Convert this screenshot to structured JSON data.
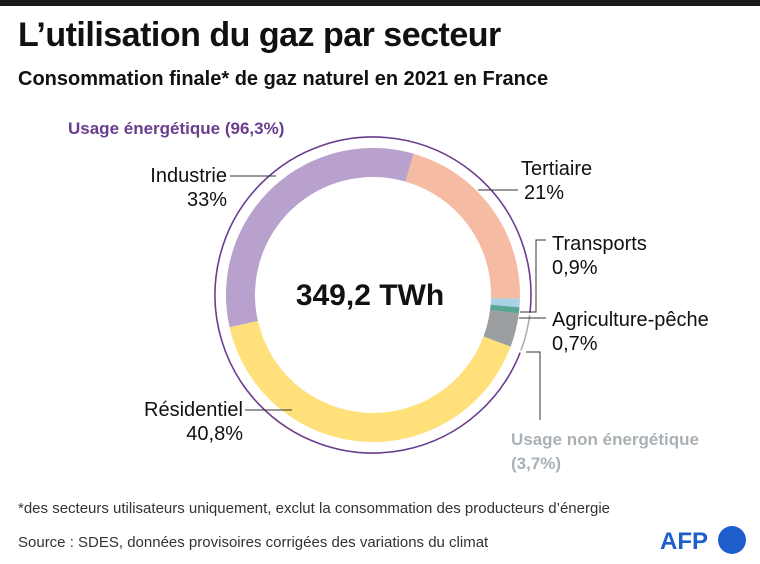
{
  "header": {
    "title": "L’utilisation du gaz par secteur",
    "subtitle": "Consommation finale* de gaz naturel en 2021 en France"
  },
  "footer": {
    "footnote": "*des secteurs utilisateurs uniquement, exclut la consommation des producteurs d’énergie",
    "source": "Source : SDES, données provisoires corrigées des variations du climat",
    "logo_text": "AFP"
  },
  "colors": {
    "energetic_group": "#6a3d8f",
    "non_energetic_group": "#a9b1b6",
    "leader_line": "#333333",
    "logo_blue": "#1f5fcb"
  },
  "chart_data": {
    "type": "pie",
    "style": "donut",
    "title": "L’utilisation du gaz par secteur",
    "center_label": "349,2 TWh",
    "total": 349.2,
    "unit": "TWh",
    "slices": [
      {
        "name": "Tertiaire",
        "value": 21,
        "label": "21%",
        "color": "#f5bba3"
      },
      {
        "name": "Transports",
        "value": 0.9,
        "label": "0,9%",
        "color": "#a8d3e6"
      },
      {
        "name": "Agriculture-pêche",
        "value": 0.7,
        "label": "0,7%",
        "color": "#5aa695"
      },
      {
        "name": "Usage non énergétique",
        "value": 3.7,
        "label": "",
        "color": "#9a9ea1"
      },
      {
        "name": "Résidentiel",
        "value": 40.8,
        "label": "40,8%",
        "color": "#ffe07a"
      },
      {
        "name": "Industrie",
        "value": 33,
        "label": "33%",
        "color": "#b9a1ce"
      }
    ],
    "groups": [
      {
        "name": "Usage énergétique",
        "label": "Usage énergétique (96,3%)",
        "value": 96.3
      },
      {
        "name": "Usage non énergétique",
        "label": "Usage non énergétique",
        "sublabel": "(3,7%)",
        "value": 3.7
      }
    ]
  }
}
